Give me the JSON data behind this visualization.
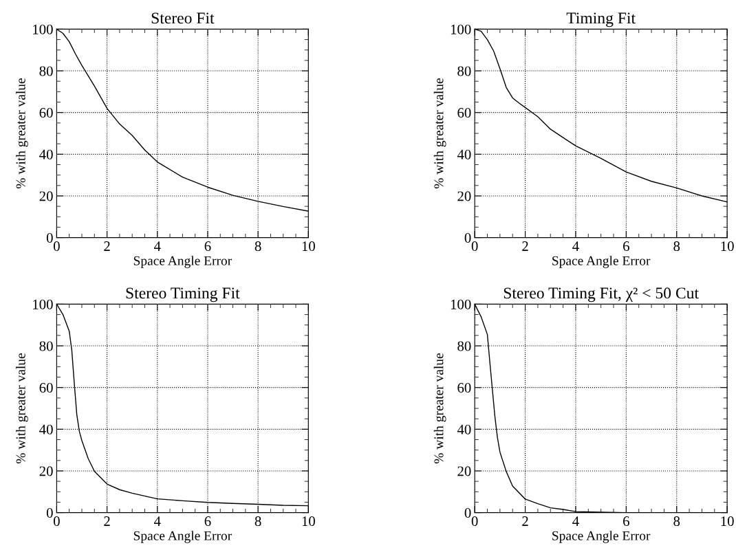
{
  "chart_data": [
    {
      "type": "line",
      "title": "Stereo Fit",
      "xlabel": "Space Angle Error",
      "ylabel": "% with greater value",
      "color": "#000000",
      "grid": true,
      "xlim": [
        0,
        10
      ],
      "ylim": [
        0,
        100
      ],
      "xticks": [
        0,
        2,
        4,
        6,
        8,
        10
      ],
      "yticks": [
        0,
        20,
        40,
        60,
        80,
        100
      ],
      "x": [
        0,
        0.25,
        0.5,
        0.75,
        1,
        1.5,
        2,
        2.5,
        3,
        3.5,
        4,
        5,
        6,
        7,
        8,
        9,
        10
      ],
      "values": [
        100,
        98,
        94,
        88,
        82.6,
        72.7,
        62,
        54.5,
        49,
        42,
        36.3,
        29,
        24.2,
        20.3,
        17.4,
        14.9,
        12.7
      ]
    },
    {
      "type": "line",
      "title": "Timing Fit",
      "xlabel": "Space Angle Error",
      "ylabel": "% with greater value",
      "color": "#000000",
      "grid": true,
      "xlim": [
        0,
        10
      ],
      "ylim": [
        0,
        100
      ],
      "xticks": [
        0,
        2,
        4,
        6,
        8,
        10
      ],
      "yticks": [
        0,
        20,
        40,
        60,
        80,
        100
      ],
      "x": [
        0,
        0.25,
        0.5,
        0.75,
        1,
        1.25,
        1.5,
        1.75,
        2,
        2.5,
        3,
        3.5,
        4,
        5,
        6,
        7,
        8,
        9,
        10
      ],
      "values": [
        100,
        99,
        95,
        89.5,
        81,
        72,
        67,
        64.6,
        62.4,
        58,
        52,
        48,
        44,
        38,
        31.5,
        27,
        23.8,
        20,
        17.1
      ]
    },
    {
      "type": "line",
      "title": "Stereo Timing Fit",
      "xlabel": "Space Angle Error",
      "ylabel": "% with greater value",
      "color": "#000000",
      "grid": true,
      "xlim": [
        0,
        10
      ],
      "ylim": [
        0,
        100
      ],
      "xticks": [
        0,
        2,
        4,
        6,
        8,
        10
      ],
      "yticks": [
        0,
        20,
        40,
        60,
        80,
        100
      ],
      "x": [
        0,
        0.25,
        0.5,
        0.6,
        0.7,
        0.8,
        0.9,
        1,
        1.25,
        1.5,
        2,
        2.5,
        3,
        4,
        5,
        6,
        7,
        8,
        9,
        10
      ],
      "values": [
        100,
        95,
        87,
        78,
        62,
        47,
        39,
        34.6,
        26,
        19.8,
        13.7,
        11,
        9.3,
        6.6,
        5.7,
        4.9,
        4.4,
        4,
        3.5,
        3.3
      ]
    },
    {
      "type": "line",
      "title": "Stereo Timing Fit, χ² < 50 Cut",
      "xlabel": "Space Angle Error",
      "ylabel": "% with greater value",
      "color": "#000000",
      "grid": true,
      "xlim": [
        0,
        10
      ],
      "ylim": [
        0,
        100
      ],
      "xticks": [
        0,
        2,
        4,
        6,
        8,
        10
      ],
      "yticks": [
        0,
        20,
        40,
        60,
        80,
        100
      ],
      "x": [
        0,
        0.25,
        0.5,
        0.6,
        0.7,
        0.8,
        0.9,
        1,
        1.25,
        1.5,
        2,
        2.5,
        3,
        3.5,
        4,
        5,
        6,
        8,
        10
      ],
      "values": [
        100,
        94,
        85.5,
        72,
        59,
        46,
        36,
        29,
        19.7,
        12.7,
        6.5,
        4.3,
        2.3,
        1.5,
        0.5,
        0.2,
        0,
        0,
        0
      ]
    }
  ]
}
